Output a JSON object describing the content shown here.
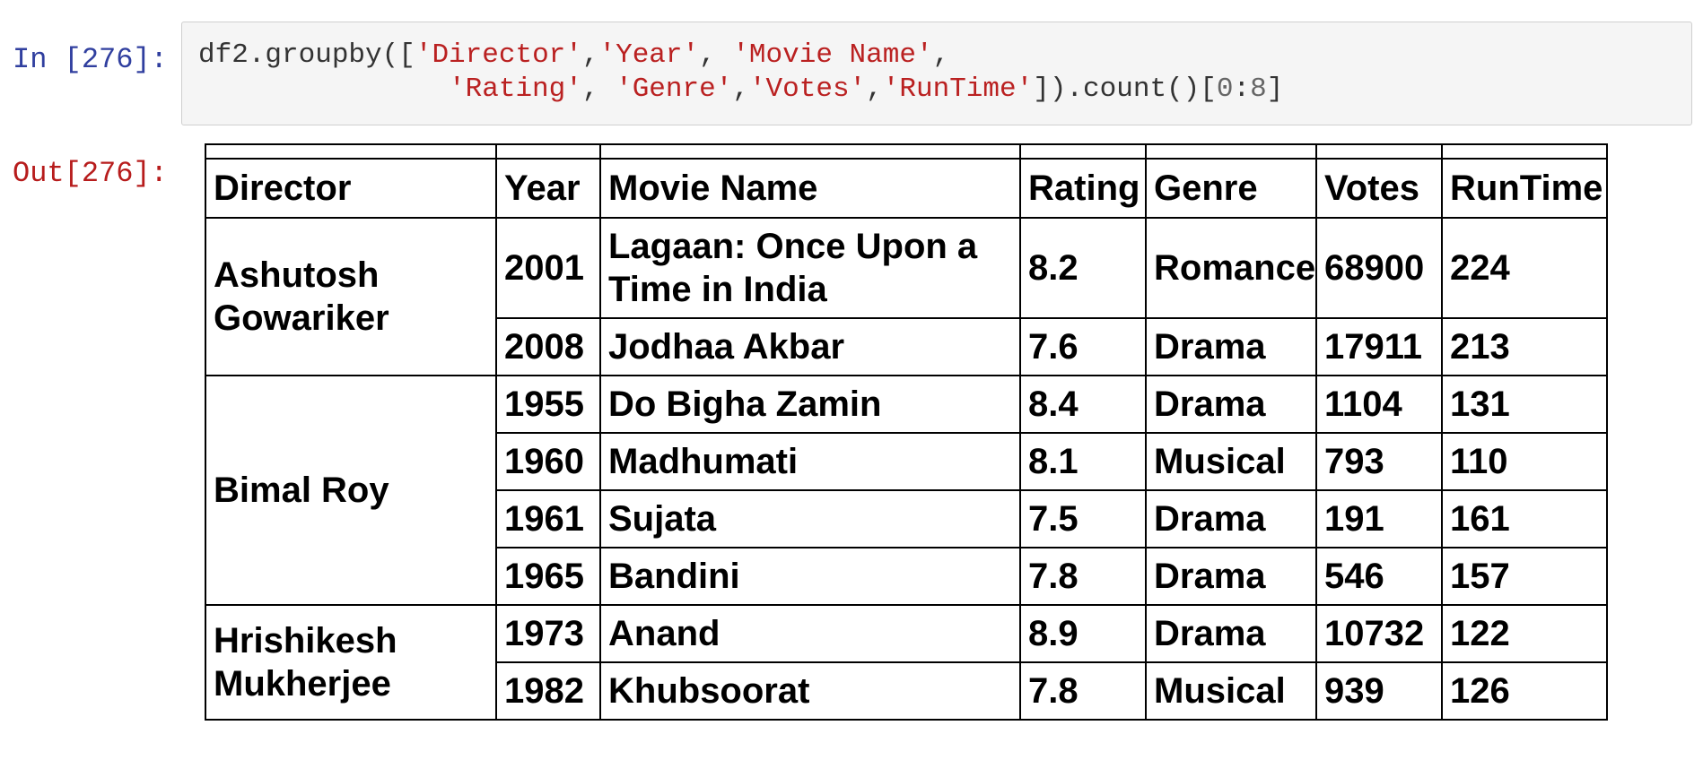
{
  "input_prompt": "In [276]:",
  "output_prompt": "Out[276]:",
  "code": {
    "line1": [
      {
        "t": "df2.groupby([",
        "k": "plain"
      },
      {
        "t": "'Director'",
        "k": "str"
      },
      {
        "t": ",",
        "k": "plain"
      },
      {
        "t": "'Year'",
        "k": "str"
      },
      {
        "t": ", ",
        "k": "plain"
      },
      {
        "t": "'Movie Name'",
        "k": "str"
      },
      {
        "t": ",",
        "k": "plain"
      }
    ],
    "line2": [
      {
        "t": "               ",
        "k": "plain"
      },
      {
        "t": "'Rating'",
        "k": "str"
      },
      {
        "t": ", ",
        "k": "plain"
      },
      {
        "t": "'Genre'",
        "k": "str"
      },
      {
        "t": ",",
        "k": "plain"
      },
      {
        "t": "'Votes'",
        "k": "str"
      },
      {
        "t": ",",
        "k": "plain"
      },
      {
        "t": "'RunTime'",
        "k": "str"
      },
      {
        "t": "]).count()[",
        "k": "plain"
      },
      {
        "t": "0",
        "k": "num"
      },
      {
        "t": ":",
        "k": "plain"
      },
      {
        "t": "8",
        "k": "num"
      },
      {
        "t": "]",
        "k": "plain"
      }
    ]
  },
  "table": {
    "headers": [
      "Director",
      "Year",
      "Movie Name",
      "Rating",
      "Genre",
      "Votes",
      "RunTime"
    ],
    "groups": [
      {
        "director": "Ashutosh Gowariker",
        "rows": [
          {
            "year": "2001",
            "movie": "Lagaan: Once Upon a Time in India",
            "rating": "8.2",
            "genre": "Romance",
            "votes": "68900",
            "runtime": "224"
          },
          {
            "year": "2008",
            "movie": "Jodhaa Akbar",
            "rating": "7.6",
            "genre": "Drama",
            "votes": "17911",
            "runtime": "213"
          }
        ]
      },
      {
        "director": "Bimal Roy",
        "rows": [
          {
            "year": "1955",
            "movie": "Do Bigha Zamin",
            "rating": "8.4",
            "genre": "Drama",
            "votes": "1104",
            "runtime": "131"
          },
          {
            "year": "1960",
            "movie": "Madhumati",
            "rating": "8.1",
            "genre": "Musical",
            "votes": "793",
            "runtime": "110"
          },
          {
            "year": "1961",
            "movie": "Sujata",
            "rating": "7.5",
            "genre": "Drama",
            "votes": "191",
            "runtime": "161"
          },
          {
            "year": "1965",
            "movie": "Bandini",
            "rating": "7.8",
            "genre": "Drama",
            "votes": "546",
            "runtime": "157"
          }
        ]
      },
      {
        "director": "Hrishikesh Mukherjee",
        "rows": [
          {
            "year": "1973",
            "movie": "Anand",
            "rating": "8.9",
            "genre": "Drama",
            "votes": "10732",
            "runtime": "122"
          },
          {
            "year": "1982",
            "movie": "Khubsoorat",
            "rating": "7.8",
            "genre": "Musical",
            "votes": "939",
            "runtime": "126"
          }
        ]
      }
    ]
  }
}
